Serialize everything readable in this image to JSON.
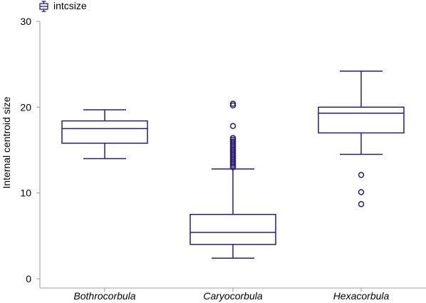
{
  "chart_data": {
    "type": "box",
    "ylabel": "Internal centroid size",
    "xlabel": "",
    "ylim": [
      0,
      30
    ],
    "yticks": [
      0,
      10,
      20,
      30
    ],
    "legend": {
      "position": "top-left",
      "entries": [
        "intcsize"
      ]
    },
    "grid": false,
    "categories": [
      "Bothrocorbula",
      "Caryocorbula",
      "Hexacorbula"
    ],
    "series": [
      {
        "name": "intcsize",
        "boxes": [
          {
            "whisker_low": 14.0,
            "q1": 15.8,
            "median": 17.5,
            "q3": 18.4,
            "whisker_high": 19.7,
            "outliers": []
          },
          {
            "whisker_low": 2.4,
            "q1": 4.0,
            "median": 5.4,
            "q3": 7.5,
            "whisker_high": 12.8,
            "outliers": [
              13.0,
              13.2,
              13.4,
              13.6,
              13.8,
              14.0,
              14.2,
              14.4,
              14.6,
              14.8,
              15.0,
              15.2,
              15.4,
              15.6,
              15.8,
              16.0,
              16.2,
              16.4,
              17.8,
              20.2,
              20.4
            ]
          },
          {
            "whisker_low": 14.5,
            "q1": 17.0,
            "median": 19.3,
            "q3": 20.0,
            "whisker_high": 24.2,
            "outliers": [
              8.7,
              10.1,
              12.1
            ]
          }
        ]
      }
    ],
    "colors": {
      "box": "#2b1a7a",
      "axis": "#9a9a9a"
    }
  }
}
